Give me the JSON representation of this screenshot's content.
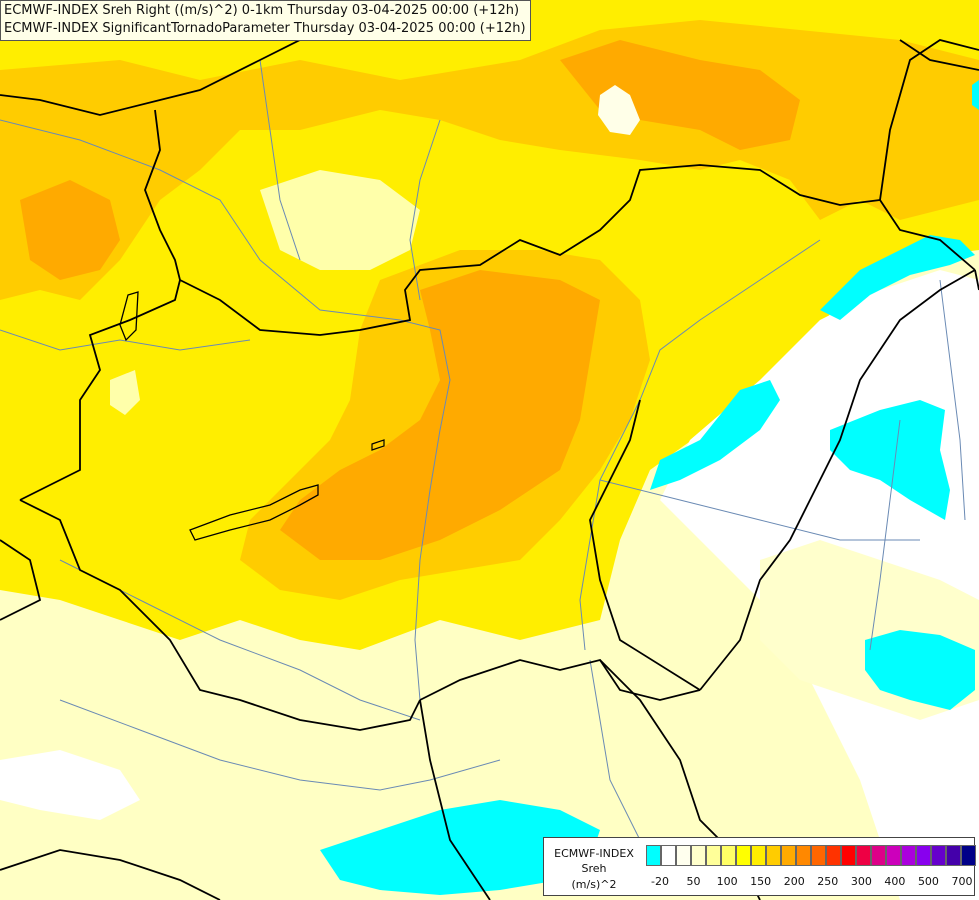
{
  "titles": {
    "line1": "ECMWF-INDEX Sreh Right ((m/s)^2) 0-1km Thursday 03-04-2025 00:00 (+12h)",
    "line2": "ECMWF-INDEX SignificantTornadoParameter Thursday 03-04-2025 00:00 (+12h)"
  },
  "legend": {
    "line1": "ECMWF-INDEX",
    "line2": "Sreh",
    "line3": "(m/s)^2",
    "colors": [
      "#00ffff",
      "#ffffff",
      "#ffffee",
      "#ffffcc",
      "#ffff99",
      "#ffff66",
      "#ffff00",
      "#ffee00",
      "#ffcc00",
      "#ffaa00",
      "#ff8800",
      "#ff6600",
      "#ff3300",
      "#ff0000",
      "#ee0044",
      "#dd0088",
      "#cc00bb",
      "#aa00dd",
      "#8800ee",
      "#6600cc",
      "#4400aa",
      "#000088"
    ],
    "ticks": [
      "-20",
      "50",
      "100",
      "150",
      "200",
      "250",
      "300",
      "400",
      "500",
      "700"
    ]
  }
}
